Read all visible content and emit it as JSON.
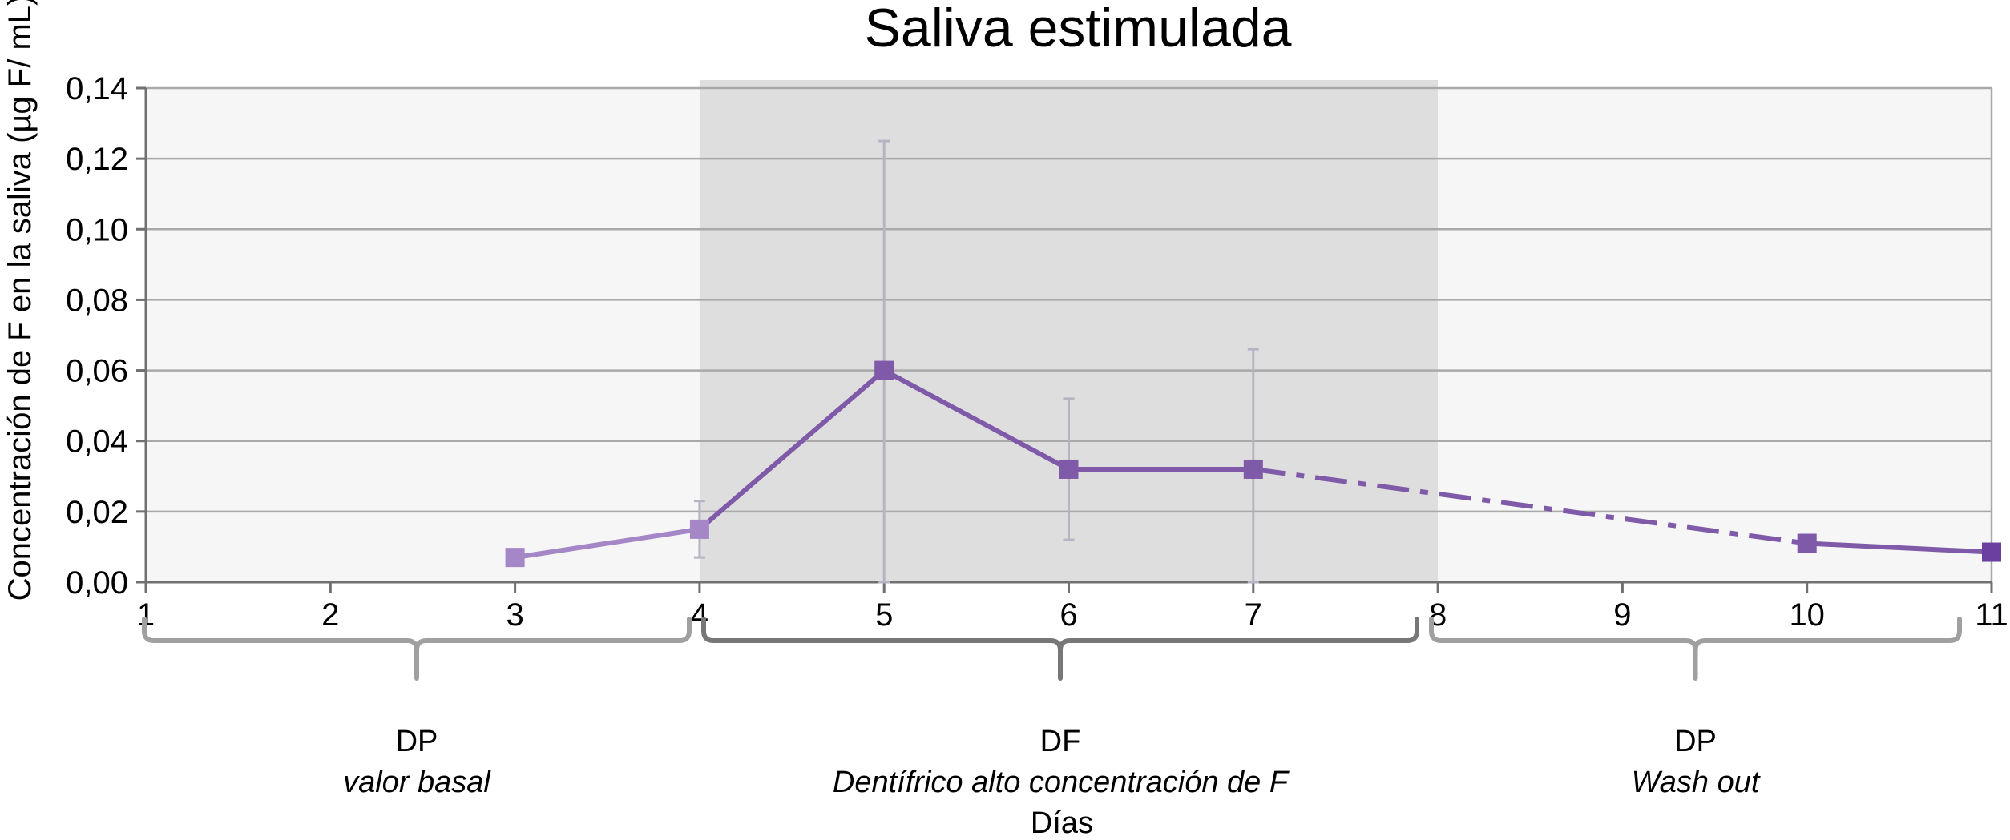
{
  "chart_data": {
    "type": "line",
    "title": "Saliva estimulada",
    "xlabel": "Días",
    "ylabel": "Concentración de F en la saliva (µg F/ mL)",
    "xlim": [
      1,
      11
    ],
    "ylim": [
      0,
      0.14
    ],
    "x_ticks": [
      "1",
      "2",
      "3",
      "4",
      "5",
      "6",
      "7",
      "8",
      "9",
      "10",
      "11"
    ],
    "y_ticks": [
      "0,00",
      "0,02",
      "0,04",
      "0,06",
      "0,08",
      "0,10",
      "0,12",
      "0,14"
    ],
    "grid": true,
    "series": [
      {
        "points": [
          {
            "x": 3,
            "y": 0.007
          },
          {
            "x": 4,
            "y": 0.015,
            "err_low": 0.007,
            "err_high": 0.023
          },
          {
            "x": 5,
            "y": 0.06,
            "err_low": 0.0,
            "err_high": 0.125
          },
          {
            "x": 6,
            "y": 0.032,
            "err_low": 0.012,
            "err_high": 0.052
          },
          {
            "x": 7,
            "y": 0.032,
            "err_low": 0.0,
            "err_high": 0.066
          },
          {
            "x": 10,
            "y": 0.011
          },
          {
            "x": 11,
            "y": 0.0085
          }
        ],
        "colors": {
          "light": "#a586c7",
          "main": "#7f5aa8",
          "dark": "#6b3fa0"
        }
      }
    ],
    "phases": [
      {
        "name": "DP",
        "description": "valor basal",
        "from": 1,
        "to": 4,
        "shade": "#f6f6f6",
        "brace": "#a0a0a0"
      },
      {
        "name": "DF",
        "description": "Dentífrico alto concentración de F",
        "from": 4,
        "to": 8,
        "shade": "#dedede",
        "brace": "#777777"
      },
      {
        "name": "DP",
        "description": "Wash out",
        "from": 8,
        "to": 11,
        "shade": "#f6f6f6",
        "brace": "#a0a0a0"
      }
    ],
    "errorbar_color": "#b8b3c4",
    "grid_color": "#a9a9a9"
  }
}
